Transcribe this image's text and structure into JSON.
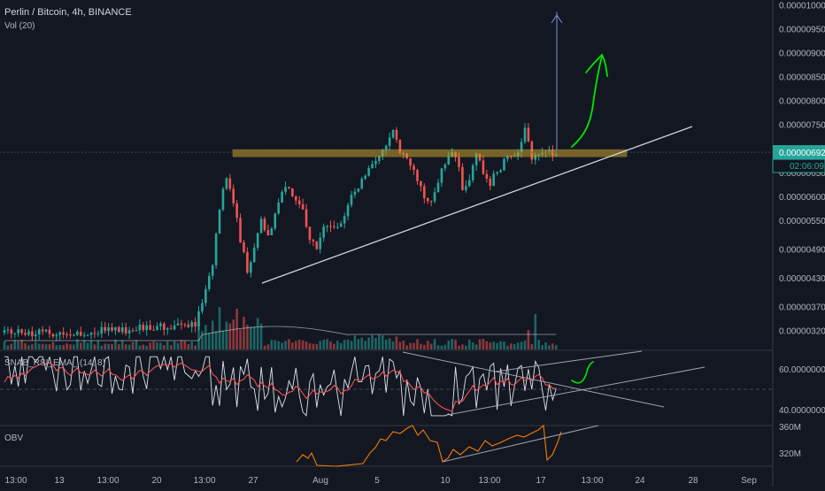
{
  "header": {
    "symbol_title": "Perlin / Bitcoin, 4h, BINANCE",
    "volume_indicator": "Vol (20)"
  },
  "price_axis": {
    "ticks": [
      "0.00001000",
      "0.00000950",
      "0.00000900",
      "0.00000850",
      "0.00000800",
      "0.00000750",
      "0.00000650",
      "0.00000600",
      "0.00000550",
      "0.00000490",
      "0.00000430",
      "0.00000370",
      "0.00000320"
    ],
    "last_price": "0.00000692",
    "countdown": "02:06:09",
    "last_price_color": "#26a69a"
  },
  "rsi_panel": {
    "label": "SNAB_RSI_EMA_ (14, 8)",
    "ticks": [
      "60.00000000",
      "40.00000000"
    ]
  },
  "obv_panel": {
    "label": "OBV",
    "ticks": [
      "360M",
      "320M"
    ]
  },
  "time_axis": {
    "ticks": [
      "13:00",
      "13",
      "13:00",
      "20",
      "13:00",
      "27",
      "Aug",
      "5",
      "10",
      "13:00",
      "17",
      "13:00",
      "24",
      "28",
      "Sep"
    ]
  },
  "chart_data": {
    "type": "candlestick",
    "symbol": "Perlin / Bitcoin",
    "interval": "4h",
    "exchange": "BINANCE",
    "price_range": [
      2.8e-06,
      1.01e-05
    ],
    "resistance_level": 6.9e-06,
    "support_trendline": [
      {
        "date": "Jul 27",
        "price": 4.2e-06
      },
      {
        "date": "Aug 30",
        "price": 7.45e-06
      }
    ],
    "target_arrow_top": 9.85e-06,
    "last_price": 6.92e-06,
    "colors": {
      "up": "#26a69a",
      "down": "#ef5350",
      "rsi": "#e0e3eb",
      "rsi_ema": "#ef5350",
      "obv": "#f57c00",
      "zone": "#c9a227",
      "drawing": "#00e600"
    }
  }
}
